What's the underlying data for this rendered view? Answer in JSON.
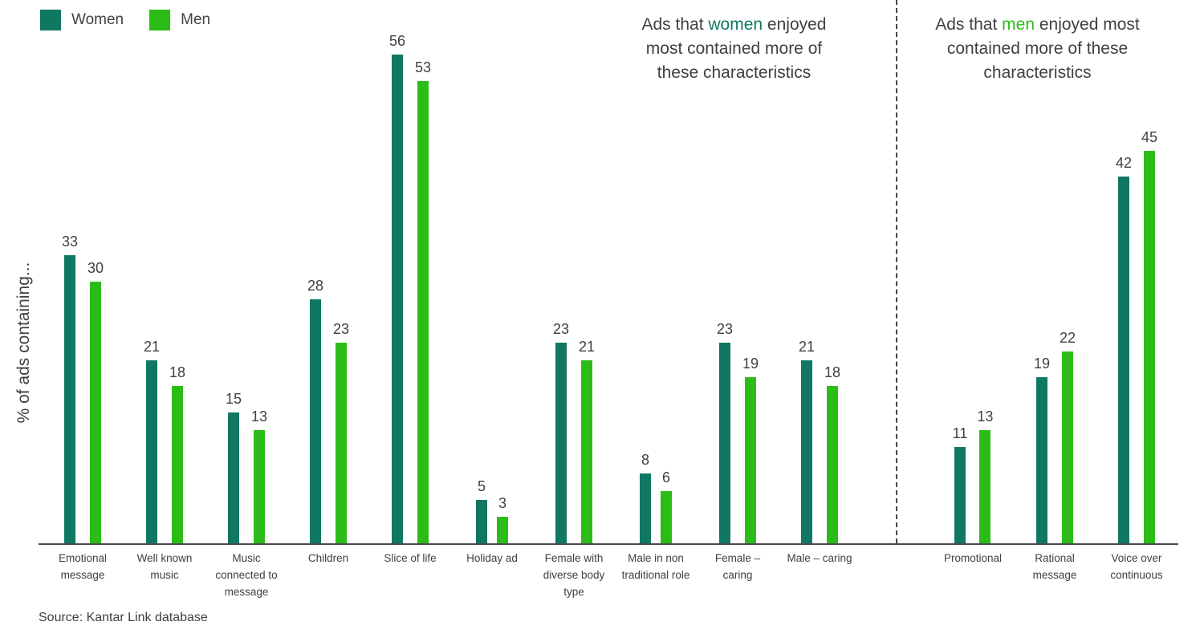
{
  "legend": [
    {
      "label": "Women",
      "color": "#107862"
    },
    {
      "label": "Men",
      "color": "#2cbc18"
    }
  ],
  "y_axis_label": "% of ads containing...",
  "source": "Source: Kantar Link database",
  "chart_data": {
    "type": "bar",
    "title": "",
    "ylabel": "% of ads containing...",
    "ylim": [
      0,
      60
    ],
    "grid": false,
    "legend_position": "top-left",
    "series_names": [
      "Women",
      "Men"
    ],
    "series_colors": {
      "women": "#107862",
      "men": "#2cbc18"
    },
    "sections": [
      {
        "name": "women-preferred",
        "annotation": {
          "prefix": "Ads that ",
          "highlight": "women",
          "suffix": " enjoyed most contained more of these characteristics"
        },
        "categories": [
          "Emotional message",
          "Well known music",
          "Music connected to message",
          "Children",
          "Slice of life",
          "Holiday ad",
          "Female with diverse body type",
          "Male in non traditional role",
          "Female – caring",
          "Male – caring"
        ],
        "series": [
          {
            "name": "Women",
            "values": [
              33,
              21,
              15,
              28,
              56,
              5,
              23,
              8,
              23,
              21
            ]
          },
          {
            "name": "Men",
            "values": [
              30,
              18,
              13,
              23,
              53,
              3,
              21,
              6,
              19,
              18
            ]
          }
        ]
      },
      {
        "name": "men-preferred",
        "annotation": {
          "prefix": "Ads that ",
          "highlight": "men",
          "suffix": " enjoyed most contained more of these characteristics"
        },
        "categories": [
          "Promotional",
          "Rational message",
          "Voice over continuous"
        ],
        "series": [
          {
            "name": "Women",
            "values": [
              11,
              19,
              42
            ]
          },
          {
            "name": "Men",
            "values": [
              13,
              22,
              45
            ]
          }
        ]
      }
    ]
  }
}
